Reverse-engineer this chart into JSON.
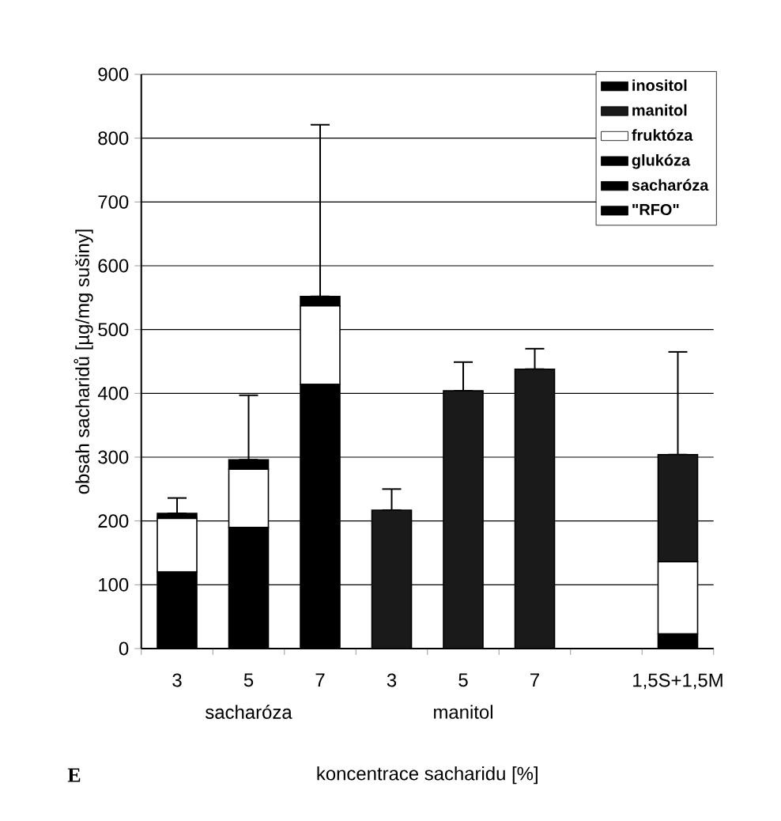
{
  "chart_data": {
    "type": "bar",
    "stacked": true,
    "xlabel": "koncentrace sacharidu [%]",
    "ylabel": "obsah sacharidů [µg/mg sušiny]",
    "categories": [
      "3",
      "5",
      "7",
      "3",
      "5",
      "7",
      null,
      "1,5S+1,5M"
    ],
    "series": [
      {
        "name": "\"RFO\"",
        "color": "#000000",
        "values": [
          null,
          null,
          null,
          null,
          null,
          null,
          null,
          null
        ]
      },
      {
        "name": "sacharóza",
        "color": "#000000",
        "values": [
          120,
          190,
          414,
          0,
          0,
          0,
          null,
          23
        ]
      },
      {
        "name": "glukóza",
        "color": "#000000",
        "values": [
          null,
          null,
          null,
          null,
          null,
          null,
          null,
          null
        ]
      },
      {
        "name": "fruktóza",
        "color": "#ffffff",
        "values": [
          84,
          91,
          123,
          0,
          0,
          0,
          null,
          113
        ]
      },
      {
        "name": "manitol",
        "color": "#1a1a1a",
        "values": [
          0,
          0,
          0,
          217,
          404,
          438,
          null,
          168
        ]
      },
      {
        "name": "inositol",
        "color": "#000000",
        "values": [
          8,
          15,
          15,
          0,
          0,
          0,
          null,
          0
        ],
        "errors": [
          [
            212,
            236
          ],
          [
            296,
            397
          ],
          [
            552,
            821
          ],
          [
            217,
            250
          ],
          [
            404,
            449
          ],
          [
            438,
            470
          ],
          null,
          [
            304,
            465
          ]
        ]
      }
    ],
    "ylim": [
      0,
      900
    ],
    "yticks": [
      0,
      100,
      200,
      300,
      400,
      500,
      600,
      700,
      800,
      900
    ],
    "grid": "y",
    "legend": "top right",
    "annotations": [
      "sacharóza",
      "manitol",
      "E"
    ]
  }
}
